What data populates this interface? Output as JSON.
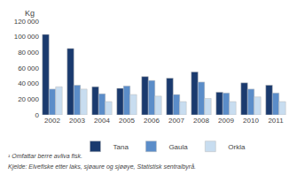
{
  "chart_data": {
    "type": "bar",
    "ylabel": "Kg",
    "categories": [
      "2002",
      "2003",
      "2004",
      "2005",
      "2006",
      "2007",
      "2008",
      "2009",
      "2010",
      "2011"
    ],
    "series": [
      {
        "name": "Tana",
        "color": "#1a3a6e",
        "values": [
          103000,
          85000,
          36000,
          34000,
          49000,
          47000,
          55000,
          29000,
          41000,
          38000
        ]
      },
      {
        "name": "Gaula",
        "color": "#5b8dc9",
        "values": [
          33000,
          38000,
          27000,
          37000,
          44000,
          26000,
          42000,
          28000,
          33000,
          28000
        ]
      },
      {
        "name": "Orkla",
        "color": "#c8ddf0",
        "values": [
          36000,
          33000,
          17000,
          26000,
          24000,
          17000,
          21000,
          17000,
          23000,
          17000
        ]
      }
    ],
    "ylim": [
      0,
      120000
    ],
    "yticks": [
      0,
      {
        "value": 20000,
        "label": "20 000"
      },
      {
        "value": 40000,
        "label": "40 000"
      },
      {
        "value": 60000,
        "label": "60 000"
      },
      {
        "value": 80000,
        "label": "80 000"
      },
      {
        "value": 100000,
        "label": "100 000"
      },
      {
        "value": 120000,
        "label": "120 000"
      }
    ],
    "grid": false,
    "legend": "bottom",
    "annotations": [
      "¹ Omfattar berre avliva fisk.",
      "Kjelde: Elvefiske etter laks, sjøaure og sjøøye, Statistisk sentralbyrå."
    ]
  }
}
